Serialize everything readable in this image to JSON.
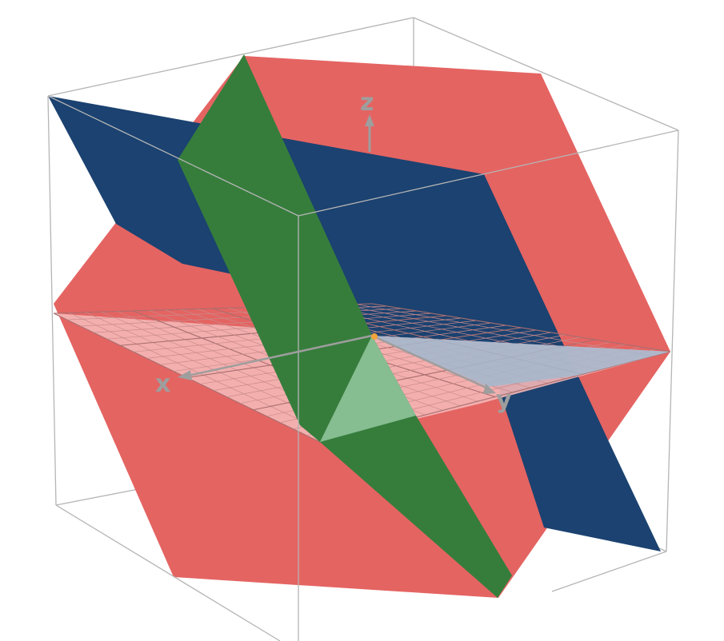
{
  "axes": {
    "x_label": "x",
    "y_label": "y",
    "z_label": "z"
  },
  "planes": [
    {
      "color": "#e46462"
    },
    {
      "color": "#1b4270"
    },
    {
      "color": "#367d3c"
    }
  ],
  "xy_plane_color": "#f4b7b7",
  "origin_color": "#f2a33b",
  "box_color": "#b5b5b5",
  "axis_color": "#9e9e9e"
}
